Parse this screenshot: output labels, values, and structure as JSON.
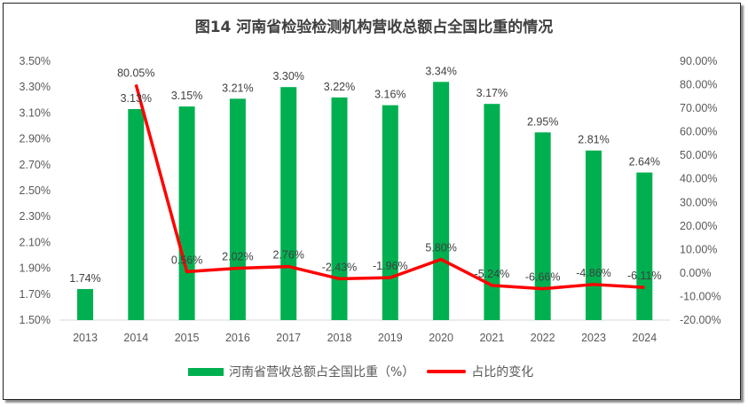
{
  "chart_data": {
    "type": "bar+line",
    "title": "图14  河南省检验检测机构营收总额占全国比重的情况",
    "categories": [
      "2013",
      "2014",
      "2015",
      "2016",
      "2017",
      "2018",
      "2019",
      "2020",
      "2021",
      "2022",
      "2023",
      "2024"
    ],
    "series": [
      {
        "name": "河南省营收总额占全国比重（%）",
        "type": "bar",
        "axis": "left",
        "color": "#00b050",
        "values": [
          1.74,
          3.13,
          3.15,
          3.21,
          3.3,
          3.22,
          3.16,
          3.34,
          3.17,
          2.95,
          2.81,
          2.64
        ],
        "labels": [
          "1.74%",
          "3.13%",
          "3.15%",
          "3.21%",
          "3.30%",
          "3.22%",
          "3.16%",
          "3.34%",
          "3.17%",
          "2.95%",
          "2.81%",
          "2.64%"
        ]
      },
      {
        "name": "占比的变化",
        "type": "line",
        "axis": "right",
        "color": "#ff0000",
        "values": [
          null,
          80.05,
          0.56,
          2.02,
          2.76,
          -2.43,
          -1.96,
          5.8,
          -5.24,
          -6.66,
          -4.86,
          -6.11
        ],
        "labels": [
          "",
          "80.05%",
          "0.56%",
          "2.02%",
          "2.76%",
          "-2.43%",
          "-1.96%",
          "5.80%",
          "-5.24%",
          "-6.66%",
          "-4.86%",
          "-6.11%"
        ]
      }
    ],
    "y_left": {
      "min": 1.5,
      "max": 3.5,
      "step": 0.2,
      "ticks": [
        "1.50%",
        "1.70%",
        "1.90%",
        "2.10%",
        "2.30%",
        "2.50%",
        "2.70%",
        "2.90%",
        "3.10%",
        "3.30%",
        "3.50%"
      ]
    },
    "y_right": {
      "min": -20,
      "max": 90,
      "step": 10,
      "ticks": [
        "-20.00%",
        "-10.00%",
        "0.00%",
        "10.00%",
        "20.00%",
        "30.00%",
        "40.00%",
        "50.00%",
        "60.00%",
        "70.00%",
        "80.00%",
        "90.00%"
      ]
    },
    "grid": false,
    "legend": "bottom"
  }
}
